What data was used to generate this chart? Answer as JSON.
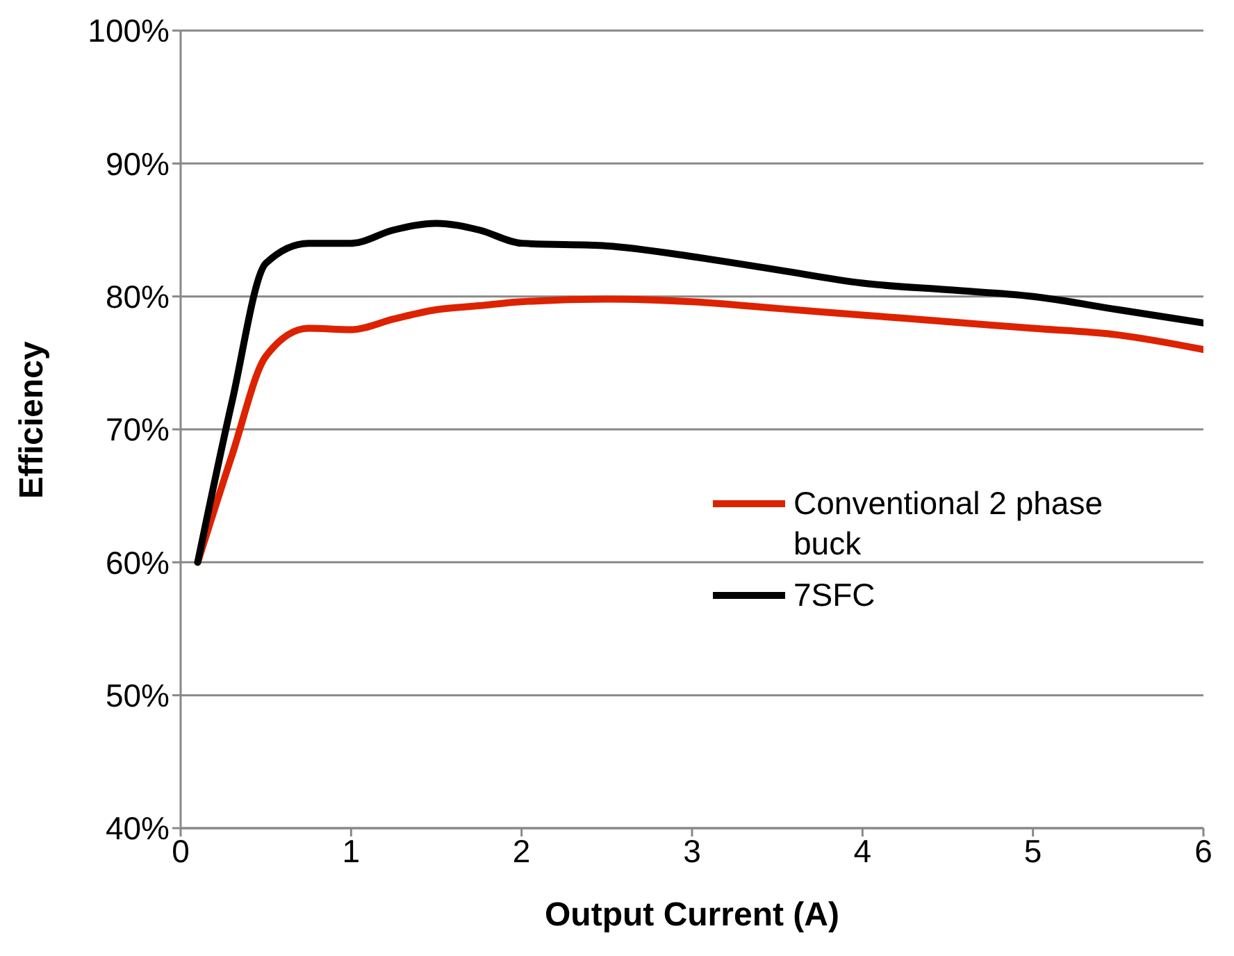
{
  "chart_data": {
    "type": "line",
    "xlabel": "Output Current (A)",
    "ylabel": "Efficiency",
    "xlim": [
      0,
      6
    ],
    "xticks": [
      0,
      1,
      2,
      3,
      4,
      5,
      6
    ],
    "ylim": [
      40,
      100
    ],
    "yticks": [
      {
        "value": 40,
        "label": "40%"
      },
      {
        "value": 50,
        "label": "50%"
      },
      {
        "value": 60,
        "label": "60%"
      },
      {
        "value": 70,
        "label": "70%"
      },
      {
        "value": 80,
        "label": "80%"
      },
      {
        "value": 90,
        "label": "90%"
      },
      {
        "value": 100,
        "label": "100%"
      }
    ],
    "x": [
      0.1,
      0.3,
      0.5,
      0.75,
      1,
      1.25,
      1.5,
      1.75,
      2,
      2.5,
      3,
      3.5,
      4,
      4.5,
      5,
      5.5,
      6
    ],
    "series": [
      {
        "name": "Conventional 2 phase buck",
        "color": "#dd2200",
        "values": [
          60,
          68,
          75.5,
          77.6,
          77.5,
          78.3,
          79,
          79.3,
          79.6,
          79.8,
          79.6,
          79.1,
          78.6,
          78.1,
          77.6,
          77.1,
          76
        ]
      },
      {
        "name": "7SFC",
        "color": "#000000",
        "values": [
          60,
          72,
          82.5,
          84,
          84,
          85,
          85.5,
          85,
          84,
          83.8,
          83,
          82,
          81,
          80.5,
          80,
          79,
          78
        ]
      }
    ],
    "grid": "y",
    "legend": "right",
    "marker": "none",
    "line_style": "solid"
  }
}
